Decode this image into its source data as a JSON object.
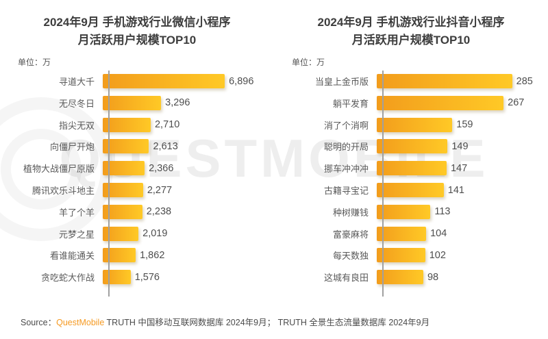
{
  "watermark": {
    "text": "QUESTMOBILE"
  },
  "colors": {
    "bar_gradient_start": "#F29C1C",
    "bar_gradient_end": "#FFC926",
    "brand_orange": "#F59A23",
    "axis_line": "#A0A0A0",
    "title_text": "#3D3D3D",
    "label_text": "#595959",
    "value_text": "#4D4D4D"
  },
  "chart_data": [
    {
      "type": "bar",
      "orientation": "horizontal",
      "title_line1": "2024年9月 手机游戏行业微信小程序",
      "title_line2": "月活跃用户规模TOP10",
      "unit_label": "单位：万",
      "categories": [
        "寻道大千",
        "无尽冬日",
        "指尖无双",
        "向僵尸开炮",
        "植物大战僵尸原版",
        "腾讯欢乐斗地主",
        "羊了个羊",
        "元梦之星",
        "看谁能通关",
        "贪吃蛇大作战"
      ],
      "values": [
        6896,
        3296,
        2710,
        2613,
        2366,
        2277,
        2238,
        2019,
        1862,
        1576
      ],
      "value_labels": [
        "6,896",
        "3,296",
        "2,710",
        "2,613",
        "2,366",
        "2,277",
        "2,238",
        "2,019",
        "1,862",
        "1,576"
      ],
      "layout": {
        "grid": false,
        "legend": false,
        "data_labels": "end-of-bar",
        "bar_max_pct": 73
      }
    },
    {
      "type": "bar",
      "orientation": "horizontal",
      "title_line1": "2024年9月 手机游戏行业抖音小程序",
      "title_line2": "月活跃用户规模TOP10",
      "unit_label": "单位：万",
      "categories": [
        "当皇上金币版",
        "躺平发育",
        "消了个消啊",
        "聪明的开局",
        "挪车冲冲冲",
        "古籍寻宝记",
        "种树赚钱",
        "富豪麻将",
        "每天数独",
        "这城有良田"
      ],
      "values": [
        285,
        267,
        159,
        149,
        147,
        141,
        113,
        104,
        102,
        98
      ],
      "value_labels": [
        "285",
        "267",
        "159",
        "149",
        "147",
        "141",
        "113",
        "104",
        "102",
        "98"
      ],
      "layout": {
        "grid": false,
        "legend": false,
        "data_labels": "end-of-bar",
        "bar_max_pct": 81
      }
    }
  ],
  "footer": {
    "source_label": "Source：",
    "brand": "QuestMobile",
    "rest": " TRUTH 中国移动互联网数据库 2024年9月； TRUTH 全景生态流量数据库 2024年9月"
  }
}
